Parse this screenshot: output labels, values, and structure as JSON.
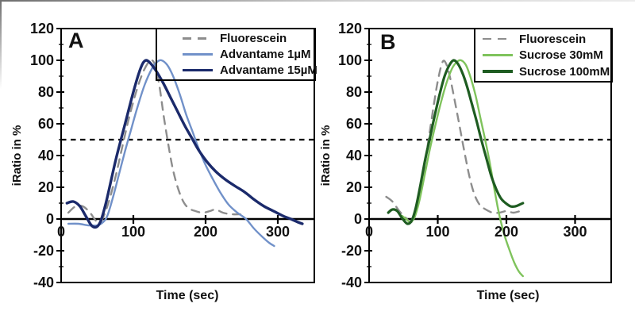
{
  "figure": {
    "background": "#ffffff",
    "axis_color": "#000000",
    "tick_label_color": "#111111"
  },
  "chart_data": [
    {
      "panel_label": "A",
      "type": "line",
      "xlabel": "Time (sec)",
      "ylabel": "iRatio in %",
      "xlim": [
        0,
        350
      ],
      "ylim": [
        -40,
        120
      ],
      "grid": false,
      "xticks": {
        "values": [
          100,
          200,
          300
        ],
        "labels": [
          "100",
          "200",
          "300"
        ],
        "origin_label": "0"
      },
      "yticks": {
        "values": [
          -40,
          -20,
          0,
          20,
          40,
          60,
          80,
          100,
          120
        ],
        "labels": [
          "-40",
          "-20",
          "0",
          "20",
          "40",
          "60",
          "80",
          "100",
          "120"
        ],
        "minor_step": 10
      },
      "reference_line": {
        "y": 50,
        "style": "dashed",
        "color": "#000000"
      },
      "legend": {
        "position": "top-right",
        "border": true
      },
      "series": [
        {
          "name": "Fluorescein",
          "color": "#8d8d8d",
          "dashed": true,
          "width": 2.4,
          "points": [
            [
              10,
              4
            ],
            [
              20,
              8
            ],
            [
              30,
              8
            ],
            [
              40,
              4
            ],
            [
              48,
              -1
            ],
            [
              54,
              -2
            ],
            [
              60,
              3
            ],
            [
              68,
              14
            ],
            [
              76,
              28
            ],
            [
              84,
              44
            ],
            [
              92,
              60
            ],
            [
              100,
              74
            ],
            [
              108,
              86
            ],
            [
              116,
              95
            ],
            [
              124,
              100
            ],
            [
              130,
              97
            ],
            [
              136,
              84
            ],
            [
              142,
              65
            ],
            [
              148,
              48
            ],
            [
              154,
              33
            ],
            [
              160,
              22
            ],
            [
              168,
              12
            ],
            [
              176,
              7
            ],
            [
              186,
              5
            ],
            [
              196,
              4
            ],
            [
              206,
              5
            ],
            [
              214,
              6
            ],
            [
              224,
              4
            ],
            [
              236,
              3
            ],
            [
              248,
              3
            ]
          ]
        },
        {
          "name": "Advantame 1µM",
          "color": "#7191c9",
          "dashed": false,
          "width": 2.4,
          "points": [
            [
              10,
              -3
            ],
            [
              24,
              -3
            ],
            [
              38,
              -4
            ],
            [
              50,
              -4
            ],
            [
              58,
              -2
            ],
            [
              64,
              2
            ],
            [
              72,
              14
            ],
            [
              80,
              28
            ],
            [
              88,
              42
            ],
            [
              96,
              55
            ],
            [
              106,
              71
            ],
            [
              116,
              85
            ],
            [
              126,
              95
            ],
            [
              133,
              99
            ],
            [
              139,
              100
            ],
            [
              147,
              97
            ],
            [
              155,
              90
            ],
            [
              164,
              79
            ],
            [
              173,
              66
            ],
            [
              182,
              55
            ],
            [
              190,
              45
            ],
            [
              199,
              35
            ],
            [
              209,
              26
            ],
            [
              220,
              17
            ],
            [
              232,
              9
            ],
            [
              244,
              4
            ],
            [
              256,
              0
            ],
            [
              267,
              -6
            ],
            [
              278,
              -11
            ],
            [
              288,
              -15
            ],
            [
              295,
              -17
            ]
          ]
        },
        {
          "name": "Advantame 15µM",
          "color": "#1b2a6b",
          "dashed": false,
          "width": 3.4,
          "points": [
            [
              8,
              10
            ],
            [
              17,
              11
            ],
            [
              26,
              8
            ],
            [
              34,
              2
            ],
            [
              42,
              -4
            ],
            [
              49,
              -5
            ],
            [
              55,
              -1
            ],
            [
              62,
              10
            ],
            [
              69,
              24
            ],
            [
              76,
              38
            ],
            [
              84,
              52
            ],
            [
              92,
              66
            ],
            [
              100,
              80
            ],
            [
              107,
              91
            ],
            [
              113,
              98
            ],
            [
              118,
              100
            ],
            [
              124,
              98
            ],
            [
              132,
              93
            ],
            [
              141,
              86
            ],
            [
              151,
              77
            ],
            [
              161,
              68
            ],
            [
              171,
              59
            ],
            [
              181,
              51
            ],
            [
              191,
              43
            ],
            [
              202,
              36
            ],
            [
              214,
              30
            ],
            [
              227,
              25
            ],
            [
              240,
              21
            ],
            [
              254,
              17
            ],
            [
              268,
              12
            ],
            [
              281,
              8
            ],
            [
              294,
              5
            ],
            [
              307,
              2
            ],
            [
              318,
              0
            ],
            [
              328,
              -2
            ],
            [
              334,
              -3
            ]
          ]
        }
      ]
    },
    {
      "panel_label": "B",
      "type": "line",
      "xlabel": "Time (sec)",
      "ylabel": "iRatio in %",
      "xlim": [
        0,
        352
      ],
      "ylim": [
        -40,
        120
      ],
      "grid": false,
      "xticks": {
        "values": [
          100,
          200,
          300
        ],
        "labels": [
          "100",
          "200",
          "300"
        ],
        "origin_label": "0"
      },
      "yticks": {
        "values": [
          -40,
          -20,
          0,
          20,
          40,
          60,
          80,
          100,
          120
        ],
        "labels": [
          "-40",
          "-20",
          "0",
          "20",
          "40",
          "60",
          "80",
          "100",
          "120"
        ],
        "minor_step": 10
      },
      "reference_line": {
        "y": 50,
        "style": "dashed",
        "color": "#000000"
      },
      "legend": {
        "position": "top-right",
        "border": true
      },
      "series": [
        {
          "name": "Fluorescein",
          "color": "#8d8d8d",
          "dashed": true,
          "width": 2.4,
          "points": [
            [
              25,
              14
            ],
            [
              34,
              11
            ],
            [
              44,
              5
            ],
            [
              53,
              1
            ],
            [
              61,
              -2
            ],
            [
              67,
              2
            ],
            [
              74,
              15
            ],
            [
              81,
              34
            ],
            [
              88,
              54
            ],
            [
              95,
              74
            ],
            [
              101,
              89
            ],
            [
              107,
              99
            ],
            [
              112,
              98
            ],
            [
              118,
              89
            ],
            [
              125,
              74
            ],
            [
              132,
              58
            ],
            [
              139,
              42
            ],
            [
              146,
              27
            ],
            [
              153,
              16
            ],
            [
              161,
              9
            ],
            [
              170,
              6
            ],
            [
              180,
              4
            ],
            [
              190,
              4
            ],
            [
              200,
              5
            ],
            [
              210,
              4
            ],
            [
              220,
              5
            ]
          ]
        },
        {
          "name": "Sucrose 30mM",
          "color": "#7fc35c",
          "dashed": false,
          "width": 2.4,
          "points": [
            [
              48,
              2
            ],
            [
              54,
              0
            ],
            [
              60,
              -2
            ],
            [
              66,
              1
            ],
            [
              73,
              11
            ],
            [
              81,
              28
            ],
            [
              89,
              45
            ],
            [
              97,
              60
            ],
            [
              105,
              74
            ],
            [
              113,
              86
            ],
            [
              121,
              95
            ],
            [
              128,
              99
            ],
            [
              134,
              100
            ],
            [
              141,
              97
            ],
            [
              148,
              89
            ],
            [
              155,
              78
            ],
            [
              162,
              64
            ],
            [
              169,
              50
            ],
            [
              176,
              35
            ],
            [
              182,
              20
            ],
            [
              187,
              8
            ],
            [
              191,
              0
            ],
            [
              197,
              -10
            ],
            [
              204,
              -19
            ],
            [
              211,
              -27
            ],
            [
              218,
              -33
            ],
            [
              224,
              -36
            ]
          ]
        },
        {
          "name": "Sucrose 100mM",
          "color": "#1e5c21",
          "dashed": false,
          "width": 3.2,
          "points": [
            [
              28,
              4
            ],
            [
              34,
              6
            ],
            [
              41,
              5
            ],
            [
              49,
              0
            ],
            [
              56,
              -3
            ],
            [
              62,
              -1
            ],
            [
              68,
              7
            ],
            [
              75,
              22
            ],
            [
              82,
              38
            ],
            [
              89,
              52
            ],
            [
              96,
              66
            ],
            [
              103,
              79
            ],
            [
              110,
              90
            ],
            [
              117,
              97
            ],
            [
              123,
              100
            ],
            [
              129,
              98
            ],
            [
              136,
              92
            ],
            [
              143,
              83
            ],
            [
              150,
              72
            ],
            [
              157,
              61
            ],
            [
              164,
              49
            ],
            [
              171,
              38
            ],
            [
              178,
              27
            ],
            [
              185,
              19
            ],
            [
              192,
              13
            ],
            [
              199,
              10
            ],
            [
              206,
              8
            ],
            [
              213,
              8
            ],
            [
              219,
              9
            ],
            [
              224,
              10
            ]
          ]
        }
      ]
    }
  ]
}
